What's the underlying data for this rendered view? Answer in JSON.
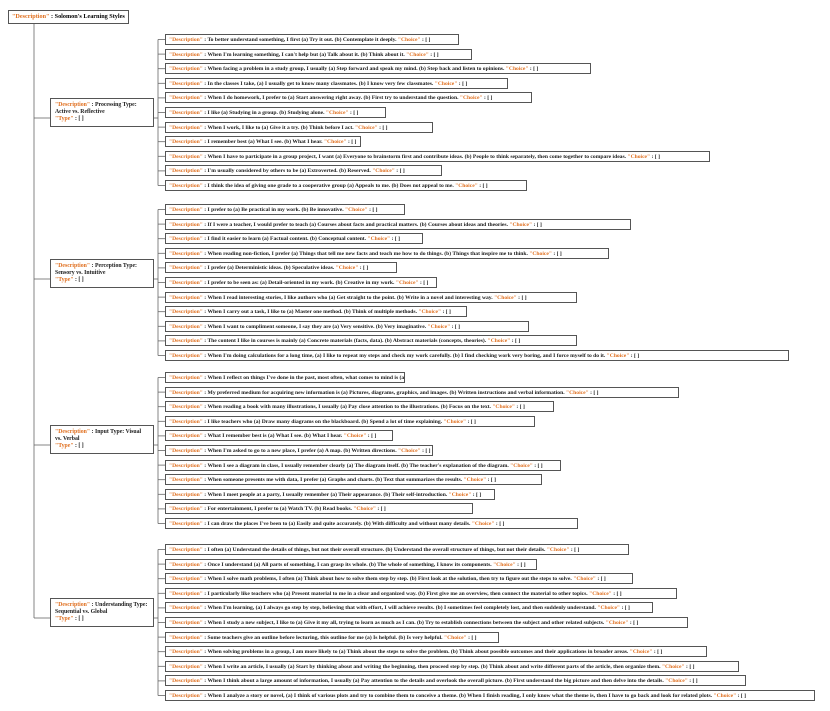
{
  "labels": {
    "description": "\"Description\"",
    "choice": "\"Choice\"",
    "type": "\"Type\"",
    "empty": "[ ]"
  },
  "root": {
    "text": "Solomon's Learning Styles"
  },
  "categories": [
    {
      "title": "Processing Type: Active vs. Reflective",
      "items": [
        "To better understand something, I first (a) Try it out. (b) Contemplate it deeply.",
        "When I'm learning something, I can't help but (a) Talk about it. (b) Think about it.",
        "When facing a problem in a study group, I usually (a) Step forward and speak my mind. (b) Step back and listen to opinions.",
        "In the classes I take, (a) I usually get to know many classmates. (b) I know very few classmates.",
        "When I do homework, I prefer to (a) Start answering right away. (b) First try to understand the question.",
        "I like (a) Studying in a group. (b) Studying alone.",
        "When I work, I like to (a) Give it a try. (b) Think before I act.",
        "I remember best (a) What I see. (b) What I hear.",
        "When I have to participate in a group project, I want (a) Everyone to brainstorm first and contribute ideas. (b) People to think separately, then come together to compare ideas.",
        "I'm usually considered by others to be (a) Extroverted. (b) Reserved.",
        "I think the idea of giving one grade to a cooperative group (a) Appeals to me. (b) Does not appeal to me."
      ]
    },
    {
      "title": "Perception Type: Sensory vs. Intuitive",
      "items": [
        "I prefer to (a) Be practical in my work. (b) Be innovative.",
        "If I were a teacher, I would prefer to teach (a) Courses about facts and practical matters. (b) Courses about ideas and theories.",
        "I find it easier to learn (a) Factual content. (b) Conceptual content.",
        "When reading non-fiction, I prefer (a) Things that tell me new facts and teach me how to do things. (b) Things that inspire me to think.",
        "I prefer (a) Deterministic ideas. (b) Speculative ideas.",
        "I prefer to be seen as: (a) Detail-oriented in my work. (b) Creative in my work.",
        "When I read interesting stories, I like authors who (a) Get straight to the point. (b) Write in a novel and interesting way.",
        "When I carry out a task, I like to (a) Master one method. (b) Think of multiple methods.",
        "When I want to compliment someone, I say they are (a) Very sensitive. (b) Very imaginative.",
        "The content I like in courses is mainly (a) Concrete materials (facts, data). (b) Abstract materials (concepts, theories).",
        "When I'm doing calculations for a long time, (a) I like to repeat my steps and check my work carefully. (b) I find checking work very boring, and I force myself to do it."
      ]
    },
    {
      "title": "Input Type: Visual vs. Verbal",
      "items": [
        "When I reflect on things I've done in the past, most often, what comes to mind is (a) An image. (b) Some words.",
        "My preferred medium for acquiring new information is (a) Pictures, diagrams, graphics, and images. (b) Written instructions and verbal information.",
        "When reading a book with many illustrations, I usually (a) Pay close attention to the illustrations. (b) Focus on the text.",
        "I like teachers who (a) Draw many diagrams on the blackboard. (b) Spend a lot of time explaining.",
        "What I remember best is (a) What I see. (b) What I hear.",
        "When I'm asked to go to a new place, I prefer (a) A map. (b) Written directions.",
        "When I see a diagram in class, I usually remember clearly (a) The diagram itself. (b) The teacher's explanation of the diagram.",
        "When someone presents me with data, I prefer (a) Graphs and charts. (b) Text that summarizes the results.",
        "When I meet people at a party, I usually remember (a) Their appearance. (b) Their self-introduction.",
        "For entertainment, I prefer to (a) Watch TV. (b) Read books.",
        "I can draw the places I've been to (a) Easily and quite accurately. (b) With difficulty and without many details."
      ]
    },
    {
      "title": "Understanding Type: Sequential vs. Global",
      "items": [
        "I often (a) Understand the details of things, but not their overall structure. (b) Understand the overall structure of things, but not their details.",
        "Once I understand (a) All parts of something, I can grasp its whole. (b) The whole of something, I know its components.",
        "When I solve math problems, I often (a) Think about how to solve them step by step. (b) First look at the solution, then try to figure out the steps to solve.",
        "I particularly like teachers who (a) Present material to me in a clear and organized way. (b) First give me an overview, then connect the material to other topics.",
        "When I'm learning, (a) I always go step by step, believing that with effort, I will achieve results. (b) I sometimes feel completely lost, and then suddenly understand.",
        "When I study a new subject, I like to (a) Give it my all, trying to learn as much as I can. (b) Try to establish connections between the subject and other related subjects.",
        "Some teachers give an outline before lecturing, this outline for me (a) Is helpful. (b) Is very helpful.",
        "When solving problems in a group, I am more likely to (a) Think about the steps to solve the problem. (b) Think about possible outcomes and their applications in broader areas.",
        "When I write an article, I usually (a) Start by thinking about and writing the beginning, then proceed step by step. (b) Think about and write different parts of the article, then organize them.",
        "When I think about a large amount of information, I usually (a) Pay attention to the details and overlook the overall picture. (b) First understand the big picture and then delve into the details.",
        "When I analyze a story or novel, (a) I think of various plots and try to combine them to conceive a theme. (b) When I finish reading, I only know what the theme is, then I have to go back and look for related plots."
      ]
    }
  ]
}
